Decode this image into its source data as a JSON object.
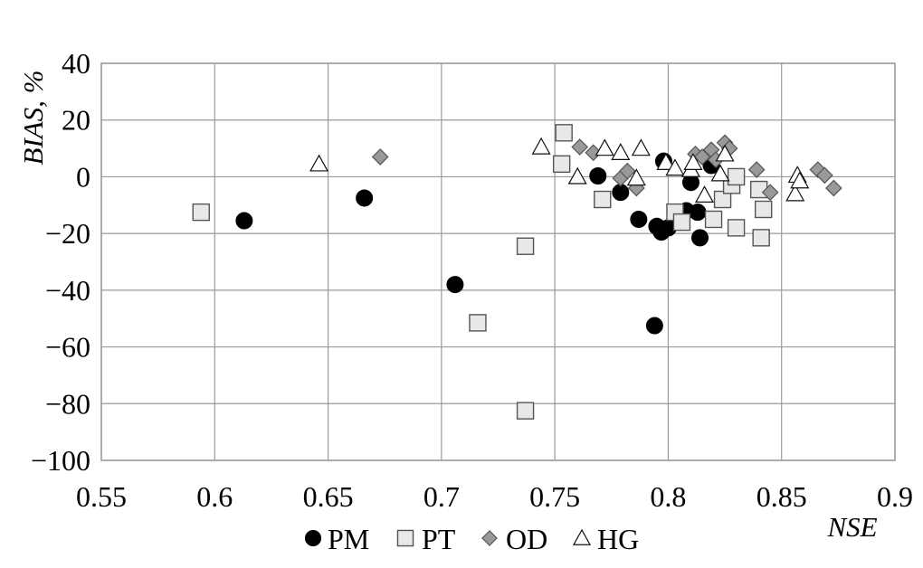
{
  "chart_data": {
    "type": "scatter",
    "title": "",
    "xlabel": "NSE",
    "ylabel": "BIAS, %",
    "xlim": [
      0.55,
      0.9
    ],
    "ylim": [
      -100,
      40
    ],
    "xticks": [
      0.55,
      0.6,
      0.65,
      0.7,
      0.75,
      0.8,
      0.85,
      0.9
    ],
    "yticks": [
      -100,
      -80,
      -60,
      -40,
      -20,
      0,
      20,
      40
    ],
    "xtick_labels": [
      "0.55",
      "0.6",
      "0.65",
      "0.7",
      "0.75",
      "0.8",
      "0.85",
      "0.9"
    ],
    "ytick_labels": [
      "−100",
      "−80",
      "−60",
      "−40",
      "−20",
      "0",
      "20",
      "40"
    ],
    "grid": true,
    "legend_position": "bottom",
    "series": [
      {
        "name": "PM",
        "marker": "circle",
        "color": "#000000",
        "points": [
          [
            0.613,
            -15.5
          ],
          [
            0.666,
            -7.5
          ],
          [
            0.706,
            -38
          ],
          [
            0.794,
            -52.5
          ],
          [
            0.769,
            0.3
          ],
          [
            0.779,
            -5.5
          ],
          [
            0.787,
            -15
          ],
          [
            0.795,
            -17.5
          ],
          [
            0.797,
            -19.5
          ],
          [
            0.8,
            -18
          ],
          [
            0.798,
            5.5
          ],
          [
            0.808,
            -12
          ],
          [
            0.81,
            -2
          ],
          [
            0.813,
            -12.5
          ],
          [
            0.814,
            -21.5
          ],
          [
            0.819,
            4
          ]
        ]
      },
      {
        "name": "PT",
        "marker": "square",
        "color": "#e8e8e8",
        "points": [
          [
            0.594,
            -12.5
          ],
          [
            0.716,
            -51.5
          ],
          [
            0.737,
            -24.5
          ],
          [
            0.737,
            -82.5
          ],
          [
            0.754,
            15.5
          ],
          [
            0.753,
            4.5
          ],
          [
            0.771,
            -8
          ],
          [
            0.803,
            -12.5
          ],
          [
            0.806,
            -16
          ],
          [
            0.82,
            -15
          ],
          [
            0.824,
            -8
          ],
          [
            0.828,
            -3
          ],
          [
            0.83,
            0
          ],
          [
            0.83,
            -18
          ],
          [
            0.84,
            -4.5
          ],
          [
            0.842,
            -11.5
          ],
          [
            0.841,
            -21.5
          ]
        ]
      },
      {
        "name": "OD",
        "marker": "diamond",
        "color": "#999999",
        "points": [
          [
            0.673,
            7
          ],
          [
            0.761,
            10.5
          ],
          [
            0.767,
            8.5
          ],
          [
            0.779,
            -0.5
          ],
          [
            0.782,
            2
          ],
          [
            0.786,
            -4
          ],
          [
            0.812,
            8
          ],
          [
            0.815,
            7
          ],
          [
            0.819,
            9.5
          ],
          [
            0.821,
            6
          ],
          [
            0.825,
            12
          ],
          [
            0.827,
            10
          ],
          [
            0.839,
            2.5
          ],
          [
            0.845,
            -5.5
          ],
          [
            0.866,
            2.5
          ],
          [
            0.869,
            0.5
          ],
          [
            0.873,
            -4
          ]
        ]
      },
      {
        "name": "HG",
        "marker": "triangle",
        "color": "#ffffff",
        "points": [
          [
            0.646,
            4.5
          ],
          [
            0.744,
            10.5
          ],
          [
            0.76,
            0
          ],
          [
            0.772,
            10
          ],
          [
            0.779,
            8.5
          ],
          [
            0.786,
            -0.5
          ],
          [
            0.788,
            10
          ],
          [
            0.799,
            5
          ],
          [
            0.803,
            3
          ],
          [
            0.81,
            2.5
          ],
          [
            0.811,
            5
          ],
          [
            0.816,
            -6.5
          ],
          [
            0.823,
            1
          ],
          [
            0.825,
            8
          ],
          [
            0.856,
            -6
          ],
          [
            0.857,
            0.5
          ],
          [
            0.858,
            -1.5
          ]
        ]
      }
    ]
  }
}
